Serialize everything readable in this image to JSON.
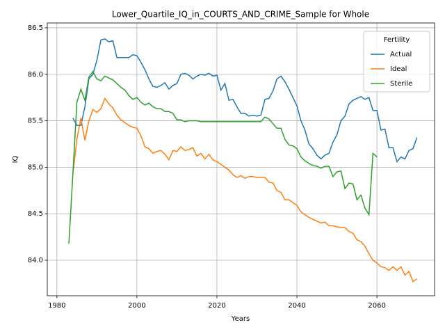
{
  "chart_data": {
    "type": "line",
    "title": "Lower_Quartile_IQ_in_COURTS_AND_CRIME_Sample for Whole",
    "x_label": "Years",
    "y_label": "IQ",
    "x": [
      1983,
      1984,
      1985,
      1986,
      1987,
      1988,
      1989,
      1990,
      1991,
      1992,
      1993,
      1994,
      1995,
      1996,
      1997,
      1998,
      1999,
      2000,
      2001,
      2002,
      2003,
      2004,
      2005,
      2006,
      2007,
      2008,
      2009,
      2010,
      2011,
      2012,
      2013,
      2014,
      2015,
      2016,
      2017,
      2018,
      2019,
      2020,
      2021,
      2022,
      2023,
      2024,
      2025,
      2026,
      2027,
      2028,
      2029,
      2030,
      2031,
      2032,
      2033,
      2034,
      2035,
      2036,
      2037,
      2038,
      2039,
      2040,
      2041,
      2042,
      2043,
      2044,
      2045,
      2046,
      2047,
      2048,
      2049,
      2050,
      2051,
      2052,
      2053,
      2054,
      2055,
      2056,
      2057,
      2058,
      2059,
      2060,
      2061,
      2062,
      2063,
      2064,
      2065,
      2066,
      2067,
      2068,
      2069,
      2070
    ],
    "series": [
      {
        "name": "Actual",
        "color": "#1f77b4",
        "values": [
          null,
          85.53,
          85.45,
          85.45,
          85.65,
          85.95,
          86.0,
          86.15,
          86.37,
          86.38,
          86.35,
          86.36,
          86.18,
          86.18,
          86.18,
          86.18,
          86.21,
          86.2,
          86.13,
          86.05,
          85.95,
          85.87,
          85.86,
          85.88,
          85.91,
          85.84,
          85.88,
          85.9,
          86.0,
          86.01,
          85.99,
          85.95,
          85.98,
          86.0,
          85.99,
          86.01,
          85.98,
          85.99,
          85.83,
          85.9,
          85.72,
          85.73,
          85.65,
          85.58,
          85.58,
          85.55,
          85.56,
          85.55,
          85.56,
          85.73,
          85.74,
          85.82,
          85.95,
          85.98,
          85.92,
          85.84,
          85.75,
          85.66,
          85.5,
          85.4,
          85.25,
          85.2,
          85.13,
          85.09,
          85.13,
          85.15,
          85.27,
          85.35,
          85.5,
          85.55,
          85.68,
          85.72,
          85.74,
          85.76,
          85.73,
          85.75,
          85.61,
          85.61,
          85.4,
          85.41,
          85.21,
          85.21,
          85.06,
          85.11,
          85.09,
          85.18,
          85.2,
          85.32
        ]
      },
      {
        "name": "Ideal",
        "color": "#ff7f0e",
        "values": [
          null,
          84.93,
          85.3,
          85.53,
          85.29,
          85.5,
          85.62,
          85.59,
          85.63,
          85.74,
          85.68,
          85.64,
          85.56,
          85.51,
          85.48,
          85.45,
          85.43,
          85.42,
          85.34,
          85.22,
          85.2,
          85.15,
          85.17,
          85.18,
          85.14,
          85.08,
          85.18,
          85.17,
          85.22,
          85.18,
          85.19,
          85.21,
          85.12,
          85.15,
          85.09,
          85.14,
          85.08,
          85.06,
          85.03,
          85.0,
          84.97,
          84.92,
          84.89,
          84.91,
          84.88,
          84.9,
          84.9,
          84.89,
          84.89,
          84.89,
          84.84,
          84.83,
          84.75,
          84.73,
          84.65,
          84.65,
          84.62,
          84.59,
          84.52,
          84.49,
          84.46,
          84.44,
          84.42,
          84.4,
          84.41,
          84.37,
          84.37,
          84.36,
          84.35,
          84.35,
          84.31,
          84.29,
          84.22,
          84.2,
          84.15,
          84.07,
          84.0,
          83.97,
          83.93,
          83.92,
          83.89,
          83.93,
          83.89,
          83.93,
          83.84,
          83.88,
          83.77,
          83.8
        ]
      },
      {
        "name": "Sterile",
        "color": "#2ca02c",
        "values": [
          84.18,
          84.93,
          85.7,
          85.84,
          85.72,
          85.97,
          86.03,
          85.95,
          85.93,
          85.98,
          85.96,
          85.94,
          85.9,
          85.86,
          85.83,
          85.77,
          85.73,
          85.75,
          85.7,
          85.67,
          85.69,
          85.65,
          85.63,
          85.63,
          85.6,
          85.6,
          85.58,
          85.51,
          85.51,
          85.49,
          85.5,
          85.5,
          85.5,
          85.49,
          85.49,
          85.49,
          85.49,
          85.49,
          85.49,
          85.49,
          85.49,
          85.49,
          85.49,
          85.49,
          85.49,
          85.49,
          85.49,
          85.49,
          85.49,
          85.54,
          85.52,
          85.47,
          85.42,
          85.42,
          85.3,
          85.24,
          85.23,
          85.2,
          85.11,
          85.07,
          85.04,
          85.02,
          85.01,
          84.99,
          85.01,
          85.01,
          84.9,
          84.95,
          84.96,
          84.77,
          84.83,
          84.82,
          84.65,
          84.7,
          84.56,
          84.49,
          85.15,
          85.11,
          null,
          null,
          null,
          null,
          null,
          null,
          null,
          null,
          null,
          null
        ]
      }
    ],
    "xlim": [
      1977.6,
      2074.4
    ],
    "ylim": [
      83.618,
      86.552
    ],
    "xticks": [
      1980,
      2000,
      2020,
      2040,
      2060
    ],
    "yticks": [
      {
        "value": 84.0,
        "label": "84.0"
      },
      {
        "value": 84.5,
        "label": "84.5"
      },
      {
        "value": 85.0,
        "label": "85.0"
      },
      {
        "value": 85.5,
        "label": "85.5"
      },
      {
        "value": 86.0,
        "label": "86.0"
      },
      {
        "value": 86.5,
        "label": "86.5"
      }
    ],
    "grid": true,
    "legend_title": "Fertility",
    "legend_position": "upper right"
  }
}
